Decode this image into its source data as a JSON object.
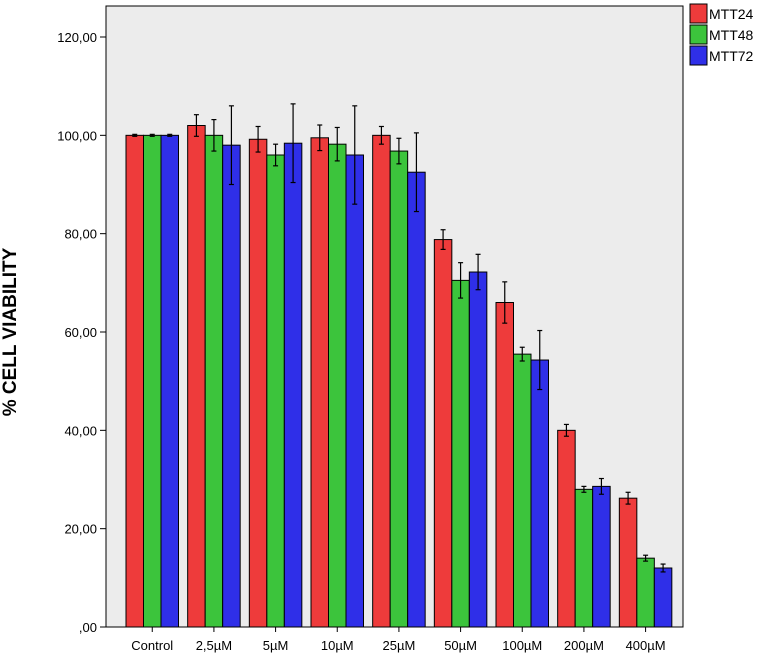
{
  "chart_data": {
    "type": "bar",
    "title": "",
    "xlabel": "",
    "ylabel": "% CELL VIABILITY",
    "ylim": [
      0,
      120
    ],
    "y_ticks": [
      0,
      20,
      40,
      60,
      80,
      100,
      120
    ],
    "y_tick_labels": [
      ",00",
      "20,00",
      "40,00",
      "60,00",
      "80,00",
      "100,00",
      "120,00"
    ],
    "categories": [
      "Control",
      "2,5µM",
      "5µM",
      "10µM",
      "25µM",
      "50µM",
      "100µM",
      "200µM",
      "400µM"
    ],
    "series": [
      {
        "name": "MTT24",
        "color": "#ee3b3b",
        "values": [
          100,
          102,
          99.2,
          99.5,
          100,
          78.8,
          66,
          40,
          26.2
        ],
        "errors": [
          0.2,
          2.2,
          2.6,
          2.6,
          1.8,
          2,
          4.2,
          1.2,
          1.2
        ]
      },
      {
        "name": "MTT48",
        "color": "#3cc43c",
        "values": [
          100,
          100,
          96,
          98.2,
          96.8,
          70.5,
          55.5,
          28,
          14
        ],
        "errors": [
          0.2,
          3.2,
          2.2,
          3.4,
          2.6,
          3.6,
          1.4,
          0.6,
          0.6
        ]
      },
      {
        "name": "MTT72",
        "color": "#2f2fe8",
        "values": [
          100,
          98,
          98.4,
          96,
          92.5,
          72.2,
          54.3,
          28.6,
          12
        ],
        "errors": [
          0.2,
          8,
          8,
          10,
          8,
          3.6,
          6,
          1.6,
          0.8
        ]
      }
    ],
    "legend_position": "top-right",
    "grid": false,
    "plot_background": "#ececec"
  }
}
